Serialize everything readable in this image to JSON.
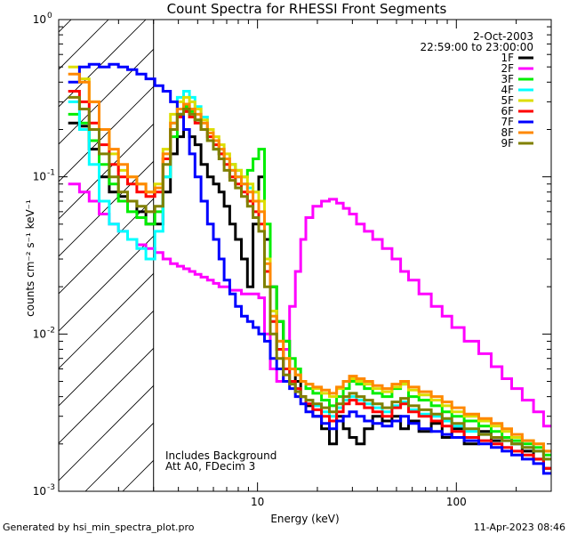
{
  "chart_data": {
    "type": "line",
    "title": "Count Spectra for RHESSI Front Segments",
    "xlabel": "Energy (keV)",
    "ylabel": "counts cm⁻² s⁻¹ keV⁻¹",
    "xscale": "log",
    "yscale": "log",
    "xlim": [
      1.0,
      300
    ],
    "ylim": [
      0.001,
      1.0
    ],
    "x_ticks": [
      {
        "value": 10,
        "label": "10"
      },
      {
        "value": 100,
        "label": "100"
      }
    ],
    "y_ticks": [
      {
        "value": 1,
        "label": "10",
        "sup": "0"
      },
      {
        "value": 0.1,
        "label": "10",
        "sup": "-1"
      },
      {
        "value": 0.01,
        "label": "10",
        "sup": "-2"
      },
      {
        "value": 0.001,
        "label": "10",
        "sup": "-3"
      }
    ],
    "date": "2-Oct-2003",
    "time_range": "22:59:00 to 23:00:00",
    "annotation_line1": "Includes Background",
    "annotation_line2": "Att A0, FDecim 3",
    "hatched_region_xmax": 3.0,
    "series": [
      {
        "name": "1F",
        "color": "#000000",
        "x": [
          1.2,
          1.35,
          1.5,
          1.7,
          1.9,
          2.1,
          2.35,
          2.6,
          2.9,
          3.2,
          3.5,
          3.8,
          4.1,
          4.4,
          4.7,
          5.0,
          5.4,
          5.8,
          6.2,
          6.6,
          7.0,
          7.5,
          8.0,
          8.6,
          9.2,
          9.8,
          10.5,
          11.2,
          12.0,
          13,
          14,
          15,
          16,
          17,
          18,
          20,
          22,
          24,
          26,
          28,
          30,
          33,
          36,
          40,
          45,
          50,
          55,
          60,
          70,
          80,
          90,
          100,
          120,
          140,
          160,
          180,
          200,
          230,
          260,
          290
        ],
        "y": [
          0.22,
          0.21,
          0.15,
          0.1,
          0.08,
          0.075,
          0.07,
          0.06,
          0.05,
          0.05,
          0.08,
          0.14,
          0.18,
          0.2,
          0.18,
          0.16,
          0.12,
          0.1,
          0.09,
          0.08,
          0.065,
          0.05,
          0.04,
          0.03,
          0.02,
          0.05,
          0.1,
          0.04,
          0.02,
          0.012,
          0.009,
          0.006,
          0.005,
          0.004,
          0.0035,
          0.003,
          0.0025,
          0.002,
          0.003,
          0.0025,
          0.0022,
          0.002,
          0.0025,
          0.003,
          0.0028,
          0.003,
          0.0025,
          0.0028,
          0.0024,
          0.0027,
          0.0022,
          0.0025,
          0.002,
          0.0024,
          0.0021,
          0.0022,
          0.002,
          0.0018,
          0.0016,
          0.0014
        ]
      },
      {
        "name": "2F",
        "color": "#ff00ff",
        "x": [
          1.2,
          1.35,
          1.5,
          1.7,
          1.9,
          2.1,
          2.35,
          2.6,
          2.9,
          3.2,
          3.5,
          3.8,
          4.1,
          4.4,
          4.7,
          5.0,
          5.4,
          5.8,
          6.2,
          6.6,
          7.0,
          7.5,
          8.0,
          8.6,
          9.2,
          9.8,
          10.5,
          11.2,
          12.0,
          13,
          14,
          15,
          16,
          17,
          18,
          20,
          22,
          24,
          26,
          28,
          30,
          33,
          36,
          40,
          45,
          50,
          55,
          60,
          70,
          80,
          90,
          100,
          120,
          140,
          160,
          180,
          200,
          230,
          260,
          290
        ],
        "y": [
          0.09,
          0.08,
          0.07,
          0.058,
          0.05,
          0.045,
          0.04,
          0.037,
          0.035,
          0.033,
          0.03,
          0.028,
          0.027,
          0.026,
          0.025,
          0.024,
          0.023,
          0.022,
          0.021,
          0.02,
          0.02,
          0.019,
          0.019,
          0.018,
          0.018,
          0.018,
          0.017,
          0.01,
          0.006,
          0.005,
          0.008,
          0.015,
          0.025,
          0.04,
          0.055,
          0.065,
          0.07,
          0.072,
          0.068,
          0.063,
          0.058,
          0.05,
          0.045,
          0.04,
          0.035,
          0.03,
          0.025,
          0.022,
          0.018,
          0.015,
          0.013,
          0.011,
          0.009,
          0.0075,
          0.0062,
          0.0052,
          0.0045,
          0.0038,
          0.0032,
          0.0026
        ]
      },
      {
        "name": "3F",
        "color": "#00ee00",
        "x": [
          1.2,
          1.35,
          1.5,
          1.7,
          1.9,
          2.1,
          2.35,
          2.6,
          2.9,
          3.2,
          3.5,
          3.8,
          4.1,
          4.4,
          4.7,
          5.0,
          5.4,
          5.8,
          6.2,
          6.6,
          7.0,
          7.5,
          8.0,
          8.6,
          9.2,
          9.8,
          10.5,
          11.2,
          12.0,
          13,
          14,
          15,
          16,
          17,
          18,
          20,
          22,
          24,
          26,
          28,
          30,
          33,
          36,
          40,
          45,
          50,
          55,
          60,
          70,
          80,
          90,
          100,
          120,
          140,
          160,
          180,
          200,
          230,
          260,
          290
        ],
        "y": [
          0.25,
          0.22,
          0.17,
          0.12,
          0.09,
          0.07,
          0.06,
          0.055,
          0.05,
          0.06,
          0.1,
          0.18,
          0.25,
          0.28,
          0.26,
          0.23,
          0.2,
          0.17,
          0.15,
          0.14,
          0.13,
          0.12,
          0.11,
          0.1,
          0.11,
          0.13,
          0.15,
          0.05,
          0.02,
          0.012,
          0.009,
          0.007,
          0.006,
          0.005,
          0.0045,
          0.0042,
          0.0038,
          0.0035,
          0.004,
          0.0045,
          0.005,
          0.0048,
          0.0045,
          0.0042,
          0.004,
          0.0045,
          0.0048,
          0.004,
          0.0038,
          0.0035,
          0.0032,
          0.003,
          0.0028,
          0.0026,
          0.0024,
          0.0022,
          0.0021,
          0.002,
          0.0019,
          0.0017
        ]
      },
      {
        "name": "4F",
        "color": "#00ffff",
        "x": [
          1.2,
          1.35,
          1.5,
          1.7,
          1.9,
          2.1,
          2.35,
          2.6,
          2.9,
          3.2,
          3.5,
          3.8,
          4.1,
          4.4,
          4.7,
          5.0,
          5.4,
          5.8,
          6.2,
          6.6,
          7.0,
          7.5,
          8.0,
          8.6,
          9.2,
          9.8,
          10.5,
          11.2,
          12.0,
          13,
          14,
          15,
          16,
          17,
          18,
          20,
          22,
          24,
          26,
          28,
          30,
          33,
          36,
          40,
          45,
          50,
          55,
          60,
          70,
          80,
          90,
          100,
          120,
          140,
          160,
          180,
          200,
          230,
          260,
          290
        ],
        "y": [
          0.3,
          0.2,
          0.12,
          0.07,
          0.05,
          0.045,
          0.04,
          0.035,
          0.03,
          0.045,
          0.1,
          0.22,
          0.32,
          0.35,
          0.32,
          0.28,
          0.24,
          0.2,
          0.17,
          0.15,
          0.13,
          0.11,
          0.1,
          0.09,
          0.085,
          0.08,
          0.07,
          0.03,
          0.012,
          0.008,
          0.006,
          0.005,
          0.0045,
          0.004,
          0.0038,
          0.0035,
          0.0032,
          0.003,
          0.0034,
          0.0038,
          0.004,
          0.0038,
          0.0036,
          0.0034,
          0.0032,
          0.0035,
          0.0037,
          0.0033,
          0.0031,
          0.003,
          0.0028,
          0.0026,
          0.0024,
          0.0023,
          0.0022,
          0.0021,
          0.002,
          0.0019,
          0.0018,
          0.0016
        ]
      },
      {
        "name": "5F",
        "color": "#dddd00",
        "x": [
          1.2,
          1.35,
          1.5,
          1.7,
          1.9,
          2.1,
          2.35,
          2.6,
          2.9,
          3.2,
          3.5,
          3.8,
          4.1,
          4.4,
          4.7,
          5.0,
          5.4,
          5.8,
          6.2,
          6.6,
          7.0,
          7.5,
          8.0,
          8.6,
          9.2,
          9.8,
          10.5,
          11.2,
          12.0,
          13,
          14,
          15,
          16,
          17,
          18,
          20,
          22,
          24,
          26,
          28,
          30,
          33,
          36,
          40,
          45,
          50,
          55,
          60,
          70,
          80,
          90,
          100,
          120,
          140,
          160,
          180,
          200,
          230,
          260,
          290
        ],
        "y": [
          0.5,
          0.42,
          0.3,
          0.2,
          0.14,
          0.11,
          0.1,
          0.09,
          0.08,
          0.09,
          0.15,
          0.25,
          0.3,
          0.32,
          0.3,
          0.27,
          0.23,
          0.2,
          0.18,
          0.16,
          0.14,
          0.12,
          0.11,
          0.1,
          0.09,
          0.08,
          0.07,
          0.03,
          0.014,
          0.009,
          0.007,
          0.006,
          0.0055,
          0.005,
          0.0048,
          0.0045,
          0.0042,
          0.004,
          0.0045,
          0.005,
          0.0052,
          0.005,
          0.0048,
          0.0045,
          0.0043,
          0.0046,
          0.0048,
          0.0044,
          0.0041,
          0.0038,
          0.0035,
          0.0032,
          0.003,
          0.0028,
          0.0026,
          0.0024,
          0.0022,
          0.0021,
          0.002,
          0.0018
        ]
      },
      {
        "name": "6F",
        "color": "#ff0000",
        "x": [
          1.2,
          1.35,
          1.5,
          1.7,
          1.9,
          2.1,
          2.35,
          2.6,
          2.9,
          3.2,
          3.5,
          3.8,
          4.1,
          4.4,
          4.7,
          5.0,
          5.4,
          5.8,
          6.2,
          6.6,
          7.0,
          7.5,
          8.0,
          8.6,
          9.2,
          9.8,
          10.5,
          11.2,
          12.0,
          13,
          14,
          15,
          16,
          17,
          18,
          20,
          22,
          24,
          26,
          28,
          30,
          33,
          36,
          40,
          45,
          50,
          55,
          60,
          70,
          80,
          90,
          100,
          120,
          140,
          160,
          180,
          200,
          230,
          260,
          290
        ],
        "y": [
          0.35,
          0.3,
          0.22,
          0.16,
          0.12,
          0.1,
          0.09,
          0.08,
          0.075,
          0.08,
          0.13,
          0.2,
          0.24,
          0.26,
          0.24,
          0.22,
          0.2,
          0.18,
          0.16,
          0.14,
          0.12,
          0.1,
          0.09,
          0.08,
          0.07,
          0.06,
          0.05,
          0.025,
          0.012,
          0.008,
          0.006,
          0.005,
          0.0045,
          0.004,
          0.0036,
          0.0033,
          0.003,
          0.0028,
          0.0032,
          0.0036,
          0.0038,
          0.0036,
          0.0034,
          0.0032,
          0.003,
          0.0034,
          0.0036,
          0.0032,
          0.003,
          0.0028,
          0.0026,
          0.0024,
          0.0022,
          0.0021,
          0.002,
          0.0019,
          0.0018,
          0.0017,
          0.0016,
          0.0014
        ]
      },
      {
        "name": "7F",
        "color": "#0000ff",
        "x": [
          1.2,
          1.35,
          1.5,
          1.7,
          1.9,
          2.1,
          2.35,
          2.6,
          2.9,
          3.2,
          3.5,
          3.8,
          4.1,
          4.4,
          4.7,
          5.0,
          5.4,
          5.8,
          6.2,
          6.6,
          7.0,
          7.5,
          8.0,
          8.6,
          9.2,
          9.8,
          10.5,
          11.2,
          12.0,
          13,
          14,
          15,
          16,
          17,
          18,
          20,
          22,
          24,
          26,
          28,
          30,
          33,
          36,
          40,
          45,
          50,
          55,
          60,
          70,
          80,
          90,
          100,
          120,
          140,
          160,
          180,
          200,
          230,
          260,
          290
        ],
        "y": [
          0.4,
          0.5,
          0.52,
          0.5,
          0.52,
          0.5,
          0.48,
          0.45,
          0.42,
          0.38,
          0.35,
          0.3,
          0.25,
          0.2,
          0.14,
          0.1,
          0.07,
          0.05,
          0.04,
          0.03,
          0.022,
          0.018,
          0.015,
          0.013,
          0.012,
          0.011,
          0.01,
          0.009,
          0.007,
          0.006,
          0.005,
          0.0045,
          0.004,
          0.0036,
          0.0032,
          0.003,
          0.0027,
          0.0025,
          0.0028,
          0.003,
          0.0032,
          0.003,
          0.0028,
          0.0027,
          0.0026,
          0.0028,
          0.003,
          0.0027,
          0.0025,
          0.0024,
          0.0023,
          0.0022,
          0.0021,
          0.002,
          0.0019,
          0.0018,
          0.0017,
          0.0016,
          0.0015,
          0.0013
        ]
      },
      {
        "name": "8F",
        "color": "#ff8800",
        "x": [
          1.2,
          1.35,
          1.5,
          1.7,
          1.9,
          2.1,
          2.35,
          2.6,
          2.9,
          3.2,
          3.5,
          3.8,
          4.1,
          4.4,
          4.7,
          5.0,
          5.4,
          5.8,
          6.2,
          6.6,
          7.0,
          7.5,
          8.0,
          8.6,
          9.2,
          9.8,
          10.5,
          11.2,
          12.0,
          13,
          14,
          15,
          16,
          17,
          18,
          20,
          22,
          24,
          26,
          28,
          30,
          33,
          36,
          40,
          45,
          50,
          55,
          60,
          70,
          80,
          90,
          100,
          120,
          140,
          160,
          180,
          200,
          230,
          260,
          290
        ],
        "y": [
          0.45,
          0.4,
          0.3,
          0.2,
          0.15,
          0.12,
          0.1,
          0.09,
          0.08,
          0.085,
          0.14,
          0.22,
          0.27,
          0.29,
          0.27,
          0.25,
          0.22,
          0.19,
          0.17,
          0.15,
          0.13,
          0.11,
          0.1,
          0.09,
          0.08,
          0.07,
          0.06,
          0.028,
          0.013,
          0.009,
          0.007,
          0.006,
          0.0055,
          0.005,
          0.0048,
          0.0046,
          0.0044,
          0.0042,
          0.0046,
          0.005,
          0.0054,
          0.0052,
          0.005,
          0.0047,
          0.0045,
          0.0048,
          0.005,
          0.0046,
          0.0043,
          0.004,
          0.0037,
          0.0034,
          0.0031,
          0.0029,
          0.0027,
          0.0025,
          0.0023,
          0.0021,
          0.002,
          0.0018
        ]
      },
      {
        "name": "9F",
        "color": "#808000",
        "x": [
          1.2,
          1.35,
          1.5,
          1.7,
          1.9,
          2.1,
          2.35,
          2.6,
          2.9,
          3.2,
          3.5,
          3.8,
          4.1,
          4.4,
          4.7,
          5.0,
          5.4,
          5.8,
          6.2,
          6.6,
          7.0,
          7.5,
          8.0,
          8.6,
          9.2,
          9.8,
          10.5,
          11.2,
          12.0,
          13,
          14,
          15,
          16,
          17,
          18,
          20,
          22,
          24,
          26,
          28,
          30,
          33,
          36,
          40,
          45,
          50,
          55,
          60,
          70,
          80,
          90,
          100,
          120,
          140,
          160,
          180,
          200,
          230,
          260,
          290
        ],
        "y": [
          0.32,
          0.27,
          0.2,
          0.14,
          0.1,
          0.08,
          0.07,
          0.065,
          0.06,
          0.065,
          0.12,
          0.2,
          0.25,
          0.27,
          0.25,
          0.23,
          0.2,
          0.17,
          0.15,
          0.13,
          0.11,
          0.095,
          0.085,
          0.075,
          0.065,
          0.055,
          0.045,
          0.02,
          0.01,
          0.007,
          0.0055,
          0.0048,
          0.0043,
          0.004,
          0.0038,
          0.0036,
          0.0034,
          0.0032,
          0.0036,
          0.004,
          0.0042,
          0.004,
          0.0038,
          0.0036,
          0.0034,
          0.0037,
          0.0039,
          0.0035,
          0.0033,
          0.0031,
          0.0029,
          0.0027,
          0.0025,
          0.0023,
          0.0022,
          0.0021,
          0.002,
          0.0019,
          0.0018,
          0.0016
        ]
      }
    ]
  },
  "footer": {
    "generated_by": "Generated by hsi_min_spectra_plot.pro",
    "timestamp": "11-Apr-2023 08:46"
  }
}
